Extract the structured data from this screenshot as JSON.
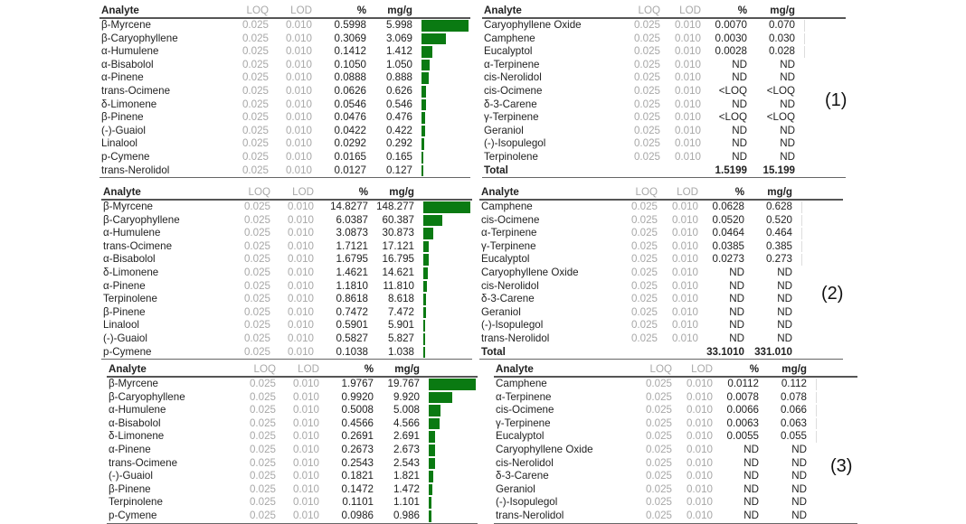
{
  "columns": {
    "analyte": "Analyte",
    "loq": "LOQ",
    "lod": "LOD",
    "pct": "%",
    "mgg": "mg/g"
  },
  "bar_color": "#0a7a12",
  "panels": [
    {
      "label": "(1)",
      "left": [
        [
          "β-Myrcene",
          "0.025",
          "0.010",
          "0.5998",
          "5.998"
        ],
        [
          "β-Caryophyllene",
          "0.025",
          "0.010",
          "0.3069",
          "3.069"
        ],
        [
          "α-Humulene",
          "0.025",
          "0.010",
          "0.1412",
          "1.412"
        ],
        [
          "α-Bisabolol",
          "0.025",
          "0.010",
          "0.1050",
          "1.050"
        ],
        [
          "α-Pinene",
          "0.025",
          "0.010",
          "0.0888",
          "0.888"
        ],
        [
          "trans-Ocimene",
          "0.025",
          "0.010",
          "0.0626",
          "0.626"
        ],
        [
          "δ-Limonene",
          "0.025",
          "0.010",
          "0.0546",
          "0.546"
        ],
        [
          "β-Pinene",
          "0.025",
          "0.010",
          "0.0476",
          "0.476"
        ],
        [
          "(-)-Guaiol",
          "0.025",
          "0.010",
          "0.0422",
          "0.422"
        ],
        [
          "Linalool",
          "0.025",
          "0.010",
          "0.0292",
          "0.292"
        ],
        [
          "p-Cymene",
          "0.025",
          "0.010",
          "0.0165",
          "0.165"
        ],
        [
          "trans-Nerolidol",
          "0.025",
          "0.010",
          "0.0127",
          "0.127"
        ]
      ],
      "right": [
        [
          "Caryophyllene Oxide",
          "0.025",
          "0.010",
          "0.0070",
          "0.070"
        ],
        [
          "Camphene",
          "0.025",
          "0.010",
          "0.0030",
          "0.030"
        ],
        [
          "Eucalyptol",
          "0.025",
          "0.010",
          "0.0028",
          "0.028"
        ],
        [
          "α-Terpinene",
          "0.025",
          "0.010",
          "ND",
          "ND"
        ],
        [
          "cis-Nerolidol",
          "0.025",
          "0.010",
          "ND",
          "ND"
        ],
        [
          "cis-Ocimene",
          "0.025",
          "0.010",
          "<LOQ",
          "<LOQ"
        ],
        [
          "δ-3-Carene",
          "0.025",
          "0.010",
          "ND",
          "ND"
        ],
        [
          "γ-Terpinene",
          "0.025",
          "0.010",
          "<LOQ",
          "<LOQ"
        ],
        [
          "Geraniol",
          "0.025",
          "0.010",
          "ND",
          "ND"
        ],
        [
          "(-)-Isopulegol",
          "0.025",
          "0.010",
          "ND",
          "ND"
        ],
        [
          "Terpinolene",
          "0.025",
          "0.010",
          "ND",
          "ND"
        ]
      ],
      "total": {
        "label": "Total",
        "pct": "1.5199",
        "mgg": "15.199"
      }
    },
    {
      "label": "(2)",
      "left": [
        [
          "β-Myrcene",
          "0.025",
          "0.010",
          "14.8277",
          "148.277"
        ],
        [
          "β-Caryophyllene",
          "0.025",
          "0.010",
          "6.0387",
          "60.387"
        ],
        [
          "α-Humulene",
          "0.025",
          "0.010",
          "3.0873",
          "30.873"
        ],
        [
          "trans-Ocimene",
          "0.025",
          "0.010",
          "1.7121",
          "17.121"
        ],
        [
          "α-Bisabolol",
          "0.025",
          "0.010",
          "1.6795",
          "16.795"
        ],
        [
          "δ-Limonene",
          "0.025",
          "0.010",
          "1.4621",
          "14.621"
        ],
        [
          "α-Pinene",
          "0.025",
          "0.010",
          "1.1810",
          "11.810"
        ],
        [
          "Terpinolene",
          "0.025",
          "0.010",
          "0.8618",
          "8.618"
        ],
        [
          "β-Pinene",
          "0.025",
          "0.010",
          "0.7472",
          "7.472"
        ],
        [
          "Linalool",
          "0.025",
          "0.010",
          "0.5901",
          "5.901"
        ],
        [
          "(-)-Guaiol",
          "0.025",
          "0.010",
          "0.5827",
          "5.827"
        ],
        [
          "p-Cymene",
          "0.025",
          "0.010",
          "0.1038",
          "1.038"
        ]
      ],
      "right": [
        [
          "Camphene",
          "0.025",
          "0.010",
          "0.0628",
          "0.628"
        ],
        [
          "cis-Ocimene",
          "0.025",
          "0.010",
          "0.0520",
          "0.520"
        ],
        [
          "α-Terpinene",
          "0.025",
          "0.010",
          "0.0464",
          "0.464"
        ],
        [
          "γ-Terpinene",
          "0.025",
          "0.010",
          "0.0385",
          "0.385"
        ],
        [
          "Eucalyptol",
          "0.025",
          "0.010",
          "0.0273",
          "0.273"
        ],
        [
          "Caryophyllene Oxide",
          "0.025",
          "0.010",
          "ND",
          "ND"
        ],
        [
          "cis-Nerolidol",
          "0.025",
          "0.010",
          "ND",
          "ND"
        ],
        [
          "δ-3-Carene",
          "0.025",
          "0.010",
          "ND",
          "ND"
        ],
        [
          "Geraniol",
          "0.025",
          "0.010",
          "ND",
          "ND"
        ],
        [
          "(-)-Isopulegol",
          "0.025",
          "0.010",
          "ND",
          "ND"
        ],
        [
          "trans-Nerolidol",
          "0.025",
          "0.010",
          "ND",
          "ND"
        ]
      ],
      "total": {
        "label": "Total",
        "pct": "33.1010",
        "mgg": "331.010"
      }
    },
    {
      "label": "(3)",
      "left": [
        [
          "β-Myrcene",
          "0.025",
          "0.010",
          "1.9767",
          "19.767"
        ],
        [
          "β-Caryophyllene",
          "0.025",
          "0.010",
          "0.9920",
          "9.920"
        ],
        [
          "α-Humulene",
          "0.025",
          "0.010",
          "0.5008",
          "5.008"
        ],
        [
          "α-Bisabolol",
          "0.025",
          "0.010",
          "0.4566",
          "4.566"
        ],
        [
          "δ-Limonene",
          "0.025",
          "0.010",
          "0.2691",
          "2.691"
        ],
        [
          "α-Pinene",
          "0.025",
          "0.010",
          "0.2673",
          "2.673"
        ],
        [
          "trans-Ocimene",
          "0.025",
          "0.010",
          "0.2543",
          "2.543"
        ],
        [
          "(-)-Guaiol",
          "0.025",
          "0.010",
          "0.1821",
          "1.821"
        ],
        [
          "β-Pinene",
          "0.025",
          "0.010",
          "0.1472",
          "1.472"
        ],
        [
          "Terpinolene",
          "0.025",
          "0.010",
          "0.1101",
          "1.101"
        ],
        [
          "p-Cymene",
          "0.025",
          "0.010",
          "0.0986",
          "0.986"
        ]
      ],
      "right": [
        [
          "Camphene",
          "0.025",
          "0.010",
          "0.0112",
          "0.112"
        ],
        [
          "α-Terpinene",
          "0.025",
          "0.010",
          "0.0078",
          "0.078"
        ],
        [
          "cis-Ocimene",
          "0.025",
          "0.010",
          "0.0066",
          "0.066"
        ],
        [
          "γ-Terpinene",
          "0.025",
          "0.010",
          "0.0063",
          "0.063"
        ],
        [
          "Eucalyptol",
          "0.025",
          "0.010",
          "0.0055",
          "0.055"
        ],
        [
          "Caryophyllene Oxide",
          "0.025",
          "0.010",
          "ND",
          "ND"
        ],
        [
          "cis-Nerolidol",
          "0.025",
          "0.010",
          "ND",
          "ND"
        ],
        [
          "δ-3-Carene",
          "0.025",
          "0.010",
          "ND",
          "ND"
        ],
        [
          "Geraniol",
          "0.025",
          "0.010",
          "ND",
          "ND"
        ],
        [
          "(-)-Isopulegol",
          "0.025",
          "0.010",
          "ND",
          "ND"
        ],
        [
          "trans-Nerolidol",
          "0.025",
          "0.010",
          "ND",
          "ND"
        ]
      ],
      "total": null
    }
  ]
}
